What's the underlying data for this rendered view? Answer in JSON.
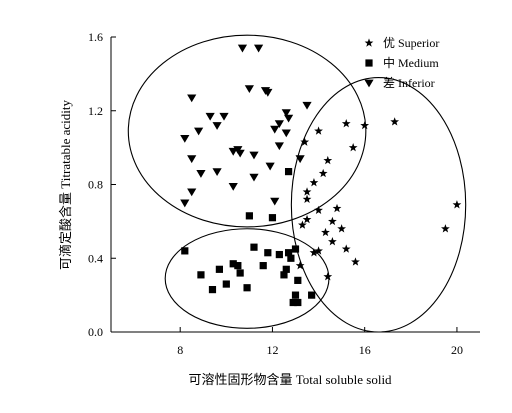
{
  "chart_data": {
    "type": "scatter",
    "xlabel": "可溶性固形物含量 Total soluble solid",
    "ylabel": "可滴定酸含量 Titratable acidity",
    "xlim": [
      5,
      21
    ],
    "ylim": [
      0,
      1.6
    ],
    "xticks": [
      8,
      12,
      16,
      20
    ],
    "yticks": [
      0.0,
      0.4,
      0.8,
      1.2,
      1.6
    ],
    "ytick_labels": [
      "0.0",
      "0.4",
      "0.8",
      "1.2",
      "1.6"
    ],
    "legend_position": "top-right",
    "grid": false,
    "series": [
      {
        "name": "优 Superior",
        "marker": "star",
        "points": [
          [
            14.0,
            1.09
          ],
          [
            15.2,
            1.13
          ],
          [
            16.0,
            1.12
          ],
          [
            17.3,
            1.14
          ],
          [
            14.4,
            0.93
          ],
          [
            15.5,
            1.0
          ],
          [
            14.2,
            0.86
          ],
          [
            13.8,
            0.81
          ],
          [
            13.5,
            0.76
          ],
          [
            13.5,
            0.72
          ],
          [
            14.0,
            0.66
          ],
          [
            14.8,
            0.67
          ],
          [
            14.6,
            0.6
          ],
          [
            13.5,
            0.61
          ],
          [
            13.3,
            0.58
          ],
          [
            15.0,
            0.56
          ],
          [
            14.3,
            0.54
          ],
          [
            14.6,
            0.49
          ],
          [
            15.2,
            0.45
          ],
          [
            14.0,
            0.44
          ],
          [
            13.8,
            0.43
          ],
          [
            15.6,
            0.38
          ],
          [
            13.2,
            0.36
          ],
          [
            14.4,
            0.3
          ],
          [
            19.5,
            0.56
          ],
          [
            20.0,
            0.69
          ],
          [
            13.4,
            1.03
          ]
        ]
      },
      {
        "name": "中 Medium",
        "marker": "square",
        "points": [
          [
            8.2,
            0.44
          ],
          [
            8.9,
            0.31
          ],
          [
            9.4,
            0.23
          ],
          [
            9.7,
            0.34
          ],
          [
            10.0,
            0.26
          ],
          [
            10.3,
            0.37
          ],
          [
            10.6,
            0.32
          ],
          [
            10.5,
            0.36
          ],
          [
            10.9,
            0.24
          ],
          [
            11.0,
            0.63
          ],
          [
            11.2,
            0.46
          ],
          [
            11.6,
            0.36
          ],
          [
            11.8,
            0.43
          ],
          [
            12.0,
            0.62
          ],
          [
            12.3,
            0.42
          ],
          [
            12.5,
            0.31
          ],
          [
            12.6,
            0.34
          ],
          [
            12.7,
            0.43
          ],
          [
            12.8,
            0.4
          ],
          [
            12.9,
            0.16
          ],
          [
            13.0,
            0.45
          ],
          [
            13.1,
            0.28
          ],
          [
            13.0,
            0.2
          ],
          [
            12.7,
            0.87
          ],
          [
            13.7,
            0.2
          ],
          [
            13.1,
            0.16
          ]
        ]
      },
      {
        "name": "差 Inferior",
        "marker": "triangle-down",
        "points": [
          [
            10.7,
            1.54
          ],
          [
            11.4,
            1.54
          ],
          [
            8.5,
            1.27
          ],
          [
            11.0,
            1.32
          ],
          [
            11.7,
            1.31
          ],
          [
            11.8,
            1.3
          ],
          [
            13.5,
            1.23
          ],
          [
            9.3,
            1.17
          ],
          [
            9.9,
            1.17
          ],
          [
            12.6,
            1.19
          ],
          [
            12.7,
            1.16
          ],
          [
            8.8,
            1.09
          ],
          [
            9.6,
            1.12
          ],
          [
            8.2,
            1.05
          ],
          [
            12.3,
            1.13
          ],
          [
            12.1,
            1.1
          ],
          [
            12.6,
            1.08
          ],
          [
            10.3,
            0.98
          ],
          [
            10.5,
            0.99
          ],
          [
            10.6,
            0.97
          ],
          [
            11.2,
            0.96
          ],
          [
            12.3,
            1.01
          ],
          [
            8.5,
            0.94
          ],
          [
            13.2,
            0.94
          ],
          [
            8.9,
            0.86
          ],
          [
            9.6,
            0.87
          ],
          [
            10.3,
            0.79
          ],
          [
            11.2,
            0.84
          ],
          [
            11.9,
            0.9
          ],
          [
            8.5,
            0.76
          ],
          [
            12.1,
            0.71
          ],
          [
            8.2,
            0.7
          ]
        ]
      }
    ],
    "clusters": [
      {
        "name": "inferior-cluster",
        "cx": 10.9,
        "cy": 1.09,
        "rx": 5.15,
        "ry": 0.52
      },
      {
        "name": "medium-cluster",
        "cx": 10.9,
        "cy": 0.29,
        "rx": 3.55,
        "ry": 0.27
      },
      {
        "name": "superior-cluster",
        "cx": 16.6,
        "cy": 0.69,
        "rx": 3.78,
        "ry": 0.69
      }
    ]
  }
}
